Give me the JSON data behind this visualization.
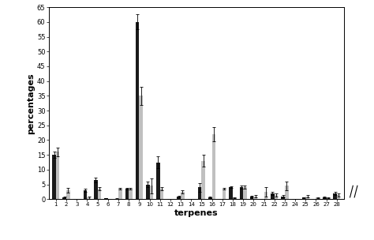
{
  "categories": [
    "1",
    "2",
    "3",
    "4",
    "5",
    "6",
    "7",
    "8",
    "9",
    "10",
    "11",
    "12",
    "13",
    "14",
    "15",
    "16",
    "17",
    "18",
    "19",
    "20",
    "21",
    "22",
    "23",
    "24",
    "25",
    "26",
    "27",
    "28"
  ],
  "black_bars": [
    15.0,
    0.5,
    0.0,
    3.0,
    6.5,
    0.3,
    0.2,
    3.5,
    60.0,
    5.0,
    12.5,
    0.0,
    0.9,
    0.0,
    4.0,
    0.6,
    0.0,
    4.0,
    4.0,
    0.9,
    0.0,
    2.0,
    1.0,
    0.0,
    0.5,
    0.0,
    0.6,
    2.0
  ],
  "gray_bars": [
    16.0,
    3.0,
    0.0,
    0.5,
    3.5,
    0.0,
    3.5,
    3.5,
    35.0,
    4.5,
    3.5,
    0.0,
    2.5,
    0.0,
    13.0,
    22.0,
    3.5,
    0.5,
    4.0,
    1.0,
    2.5,
    1.5,
    4.5,
    0.0,
    1.0,
    0.5,
    0.5,
    1.5
  ],
  "black_err": [
    1.0,
    0.3,
    0.0,
    0.5,
    0.7,
    0.1,
    0.1,
    0.3,
    2.5,
    1.0,
    2.0,
    0.0,
    0.3,
    0.0,
    1.5,
    0.3,
    0.0,
    0.3,
    0.5,
    0.3,
    0.0,
    0.5,
    0.3,
    0.0,
    0.2,
    0.0,
    0.2,
    0.5
  ],
  "gray_err": [
    1.5,
    0.8,
    0.0,
    0.3,
    0.5,
    0.0,
    0.3,
    0.3,
    3.0,
    2.5,
    0.5,
    0.0,
    0.5,
    0.0,
    2.0,
    2.5,
    0.3,
    0.2,
    0.5,
    0.5,
    1.5,
    0.5,
    1.5,
    0.0,
    0.5,
    0.2,
    0.2,
    0.5
  ],
  "ylabel": "percentages",
  "xlabel": "terpenes",
  "ylim": [
    0,
    65
  ],
  "yticks": [
    0,
    5,
    10,
    15,
    20,
    25,
    30,
    35,
    40,
    45,
    50,
    55,
    60,
    65
  ],
  "bar_width": 0.35,
  "black_color": "#1a1a1a",
  "gray_color": "#c0c0c0",
  "bg_color": "#ffffff",
  "figsize": [
    4.74,
    3.04
  ],
  "dpi": 100
}
